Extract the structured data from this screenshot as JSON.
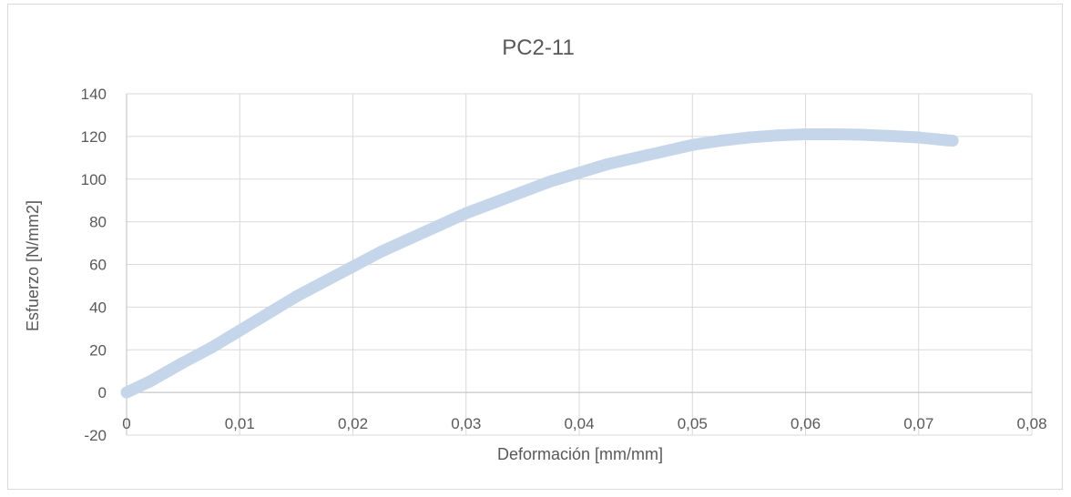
{
  "chart_data": {
    "type": "scatter",
    "title": "PC2-11",
    "xlabel": "Deformación [mm/mm]",
    "ylabel": "Esfuerzo [N/mm2]",
    "xlim": [
      0,
      0.08
    ],
    "ylim": [
      -20,
      140
    ],
    "xticks": [
      0,
      0.01,
      0.02,
      0.03,
      0.04,
      0.05,
      0.06,
      0.07,
      0.08
    ],
    "yticks": [
      -20,
      0,
      20,
      40,
      60,
      80,
      100,
      120,
      140
    ],
    "xtick_labels": [
      "0",
      "0,01",
      "0,02",
      "0,03",
      "0,04",
      "0,05",
      "0,06",
      "0,07",
      "0,08"
    ],
    "ytick_labels": [
      "-20",
      "0",
      "20",
      "40",
      "60",
      "80",
      "100",
      "120",
      "140"
    ],
    "grid": true,
    "legend": "none",
    "series": [
      {
        "color": "#c5d5ea",
        "x": [
          0,
          0.002,
          0.005,
          0.0075,
          0.01,
          0.0125,
          0.015,
          0.0175,
          0.02,
          0.0225,
          0.025,
          0.0275,
          0.03,
          0.0325,
          0.035,
          0.0375,
          0.04,
          0.0425,
          0.045,
          0.0475,
          0.05,
          0.0525,
          0.055,
          0.0575,
          0.06,
          0.0625,
          0.065,
          0.0675,
          0.07,
          0.0725,
          0.073
        ],
        "y": [
          0,
          5,
          14,
          21,
          29,
          37,
          45,
          52,
          59,
          66,
          72,
          78,
          84,
          89,
          94,
          99,
          103,
          107,
          110,
          113,
          116,
          118,
          119.5,
          120.5,
          121,
          121,
          120.8,
          120.2,
          119.5,
          118.2,
          118
        ]
      }
    ]
  }
}
